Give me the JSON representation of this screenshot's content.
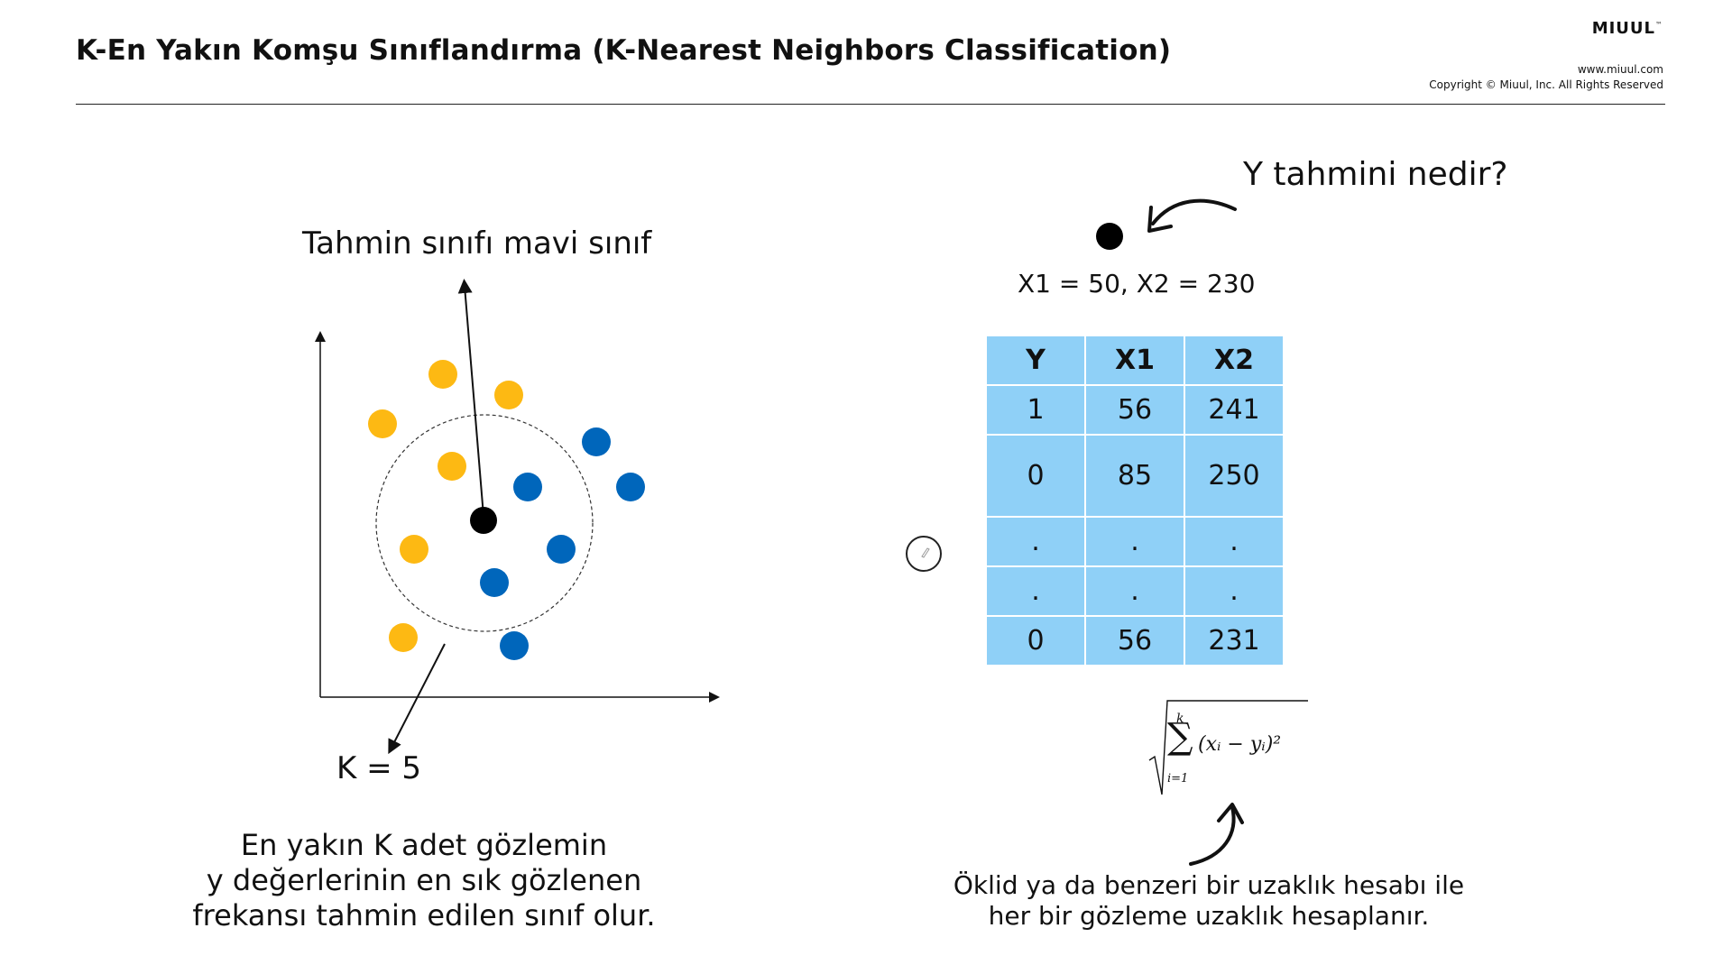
{
  "header": {
    "title": "K-En Yakın Komşu Sınıflandırma (K-Nearest Neighbors Classification)",
    "brand": "MIUUL",
    "brand_tm": "™",
    "site": "www.miuul.com",
    "copyright": "Copyright © Miuul, Inc. All Rights Reserved"
  },
  "left_panel": {
    "prediction_label": "Tahmin sınıfı mavi sınıf",
    "k_label": "K = 5",
    "explanation_lines": [
      "En yakın K adet gözlemin",
      "y değerlerinin en sık gözlenen",
      "frekansı tahmin edilen sınıf olur."
    ],
    "colors": {
      "yellow": "#FDB913",
      "blue": "#0066BB",
      "query": "#000000"
    }
  },
  "right_panel": {
    "question": "Y tahmini nedir?",
    "new_point_label": "X1 = 50, X2 = 230",
    "table": {
      "headers": [
        "Y",
        "X1",
        "X2"
      ],
      "rows": [
        [
          "1",
          "56",
          "241"
        ],
        [
          "0",
          "85",
          "250"
        ],
        [
          ".",
          ".",
          "."
        ],
        [
          ".",
          ".",
          "."
        ],
        [
          "0",
          "56",
          "231"
        ]
      ]
    },
    "formula": {
      "upper": "k",
      "lower": "i=1",
      "body": "(xᵢ − yᵢ)²"
    },
    "explanation_lines": [
      "Öklid ya da benzeri bir uzaklık hesabı ile",
      "her bir gözleme uzaklık hesaplanır."
    ],
    "table_color": "#8FD0F7"
  }
}
